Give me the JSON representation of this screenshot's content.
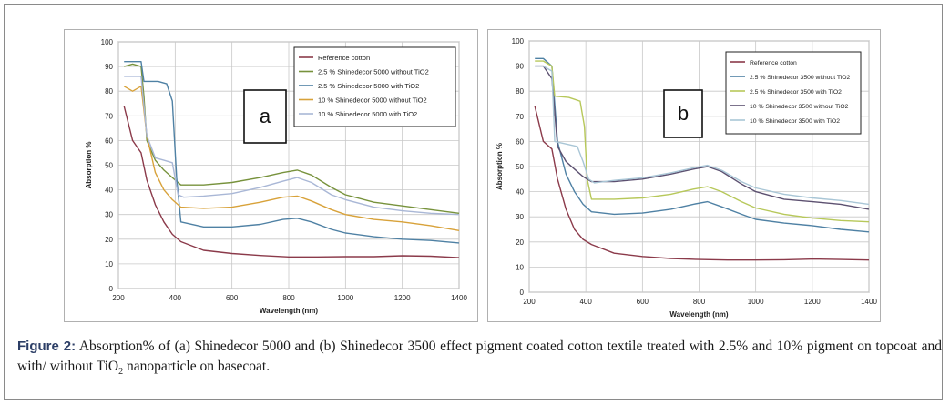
{
  "caption": {
    "label": "Figure 2:",
    "text_before_sub": " Absorption% of (a) Shinedecor 5000 and (b) Shinedecor 3500 effect pigment coated cotton textile treated with 2.5% and 10% pigment on topcoat and with/ without TiO",
    "sub": "2",
    "text_after_sub": " nanoparticle on basecoat."
  },
  "chart_data": [
    {
      "type": "line",
      "panel_label": "a",
      "xlabel": "Wavelength (nm)",
      "ylabel": "Absorption %",
      "xlim": [
        200,
        1400
      ],
      "ylim": [
        0,
        100
      ],
      "xticks": [
        200,
        400,
        600,
        800,
        1000,
        1200,
        1400
      ],
      "yticks": [
        0,
        10,
        20,
        30,
        40,
        50,
        60,
        70,
        80,
        90,
        100
      ],
      "grid": true,
      "legend_position": "top-right",
      "series": [
        {
          "name": "Reference cotton",
          "color": "#8b3a4a",
          "points": [
            [
              220,
              74
            ],
            [
              250,
              60
            ],
            [
              280,
              55
            ],
            [
              300,
              44
            ],
            [
              330,
              34
            ],
            [
              360,
              27
            ],
            [
              390,
              22
            ],
            [
              420,
              19
            ],
            [
              500,
              15.5
            ],
            [
              600,
              14.2
            ],
            [
              700,
              13.4
            ],
            [
              800,
              12.8
            ],
            [
              900,
              12.8
            ],
            [
              1000,
              12.9
            ],
            [
              1100,
              12.9
            ],
            [
              1200,
              13.3
            ],
            [
              1300,
              13.1
            ],
            [
              1400,
              12.5
            ]
          ]
        },
        {
          "name": "2.5 % Shinedecor 5000 without TiO2",
          "color": "#77923c",
          "points": [
            [
              220,
              90
            ],
            [
              250,
              91
            ],
            [
              280,
              90
            ],
            [
              290,
              78
            ],
            [
              300,
              60
            ],
            [
              330,
              52
            ],
            [
              360,
              48
            ],
            [
              390,
              45
            ],
            [
              420,
              42
            ],
            [
              500,
              42
            ],
            [
              600,
              43
            ],
            [
              700,
              45
            ],
            [
              780,
              47
            ],
            [
              830,
              48
            ],
            [
              880,
              46
            ],
            [
              950,
              41
            ],
            [
              1000,
              38
            ],
            [
              1100,
              35
            ],
            [
              1200,
              33.5
            ],
            [
              1300,
              32
            ],
            [
              1400,
              30.5
            ]
          ]
        },
        {
          "name": "2.5 % Shinedecor 5000 with TiO2",
          "color": "#4f81a4",
          "points": [
            [
              220,
              92
            ],
            [
              250,
              92
            ],
            [
              280,
              92
            ],
            [
              290,
              84
            ],
            [
              340,
              84
            ],
            [
              370,
              83
            ],
            [
              390,
              76
            ],
            [
              405,
              45
            ],
            [
              420,
              27
            ],
            [
              500,
              25
            ],
            [
              600,
              25
            ],
            [
              700,
              26
            ],
            [
              780,
              28
            ],
            [
              830,
              28.5
            ],
            [
              880,
              27
            ],
            [
              950,
              24
            ],
            [
              1000,
              22.5
            ],
            [
              1100,
              21
            ],
            [
              1200,
              20
            ],
            [
              1300,
              19.5
            ],
            [
              1400,
              18.5
            ]
          ]
        },
        {
          "name": "10 % Shinedecor 5000 without TiO2",
          "color": "#d8a23a",
          "points": [
            [
              220,
              82
            ],
            [
              250,
              80
            ],
            [
              280,
              82
            ],
            [
              300,
              62
            ],
            [
              330,
              47
            ],
            [
              360,
              40
            ],
            [
              390,
              36
            ],
            [
              420,
              33
            ],
            [
              500,
              32.5
            ],
            [
              600,
              33
            ],
            [
              700,
              35
            ],
            [
              780,
              37
            ],
            [
              830,
              37.5
            ],
            [
              880,
              35.5
            ],
            [
              950,
              32
            ],
            [
              1000,
              30
            ],
            [
              1100,
              28
            ],
            [
              1200,
              27
            ],
            [
              1300,
              25.5
            ],
            [
              1400,
              23.5
            ]
          ]
        },
        {
          "name": "10 % Shinedecor 5000 with TiO2",
          "color": "#a9b7d6",
          "points": [
            [
              220,
              86
            ],
            [
              250,
              86
            ],
            [
              280,
              86
            ],
            [
              300,
              62
            ],
            [
              330,
              53
            ],
            [
              360,
              52
            ],
            [
              390,
              51
            ],
            [
              410,
              38
            ],
            [
              430,
              37
            ],
            [
              500,
              37.5
            ],
            [
              600,
              38.5
            ],
            [
              700,
              41
            ],
            [
              780,
              43.5
            ],
            [
              830,
              45
            ],
            [
              880,
              43
            ],
            [
              950,
              38
            ],
            [
              1000,
              36
            ],
            [
              1100,
              33
            ],
            [
              1200,
              31.5
            ],
            [
              1300,
              30.5
            ],
            [
              1400,
              30
            ]
          ]
        }
      ]
    },
    {
      "type": "line",
      "panel_label": "b",
      "xlabel": "Wavelength (nm)",
      "ylabel": "Absorption %",
      "xlim": [
        200,
        1400
      ],
      "ylim": [
        0,
        100
      ],
      "xticks": [
        200,
        400,
        600,
        800,
        1000,
        1200,
        1400
      ],
      "yticks": [
        0,
        10,
        20,
        30,
        40,
        50,
        60,
        70,
        80,
        90,
        100
      ],
      "grid": true,
      "legend_position": "top-right",
      "series": [
        {
          "name": "Reference cotton",
          "color": "#8b3a4a",
          "points": [
            [
              220,
              74
            ],
            [
              250,
              60
            ],
            [
              280,
              57
            ],
            [
              300,
              45
            ],
            [
              330,
              33
            ],
            [
              360,
              25
            ],
            [
              390,
              21
            ],
            [
              420,
              19
            ],
            [
              500,
              15.5
            ],
            [
              600,
              14.2
            ],
            [
              700,
              13.4
            ],
            [
              800,
              13
            ],
            [
              900,
              12.8
            ],
            [
              1000,
              12.8
            ],
            [
              1100,
              12.9
            ],
            [
              1200,
              13.2
            ],
            [
              1300,
              13
            ],
            [
              1400,
              12.8
            ]
          ]
        },
        {
          "name": "2.5 % Shinedecor 3500 without TiO2",
          "color": "#4f81a4",
          "points": [
            [
              220,
              93
            ],
            [
              250,
              93
            ],
            [
              280,
              90
            ],
            [
              300,
              60
            ],
            [
              330,
              47
            ],
            [
              360,
              40
            ],
            [
              390,
              35
            ],
            [
              420,
              32
            ],
            [
              500,
              31
            ],
            [
              600,
              31.5
            ],
            [
              700,
              33
            ],
            [
              780,
              35
            ],
            [
              830,
              36
            ],
            [
              880,
              34
            ],
            [
              950,
              31
            ],
            [
              1000,
              29
            ],
            [
              1100,
              27.5
            ],
            [
              1200,
              26.5
            ],
            [
              1300,
              25
            ],
            [
              1400,
              24
            ]
          ]
        },
        {
          "name": "2.5 % Shinedecor 3500 with TiO2",
          "color": "#b7c85a",
          "points": [
            [
              220,
              92
            ],
            [
              250,
              92
            ],
            [
              280,
              90
            ],
            [
              290,
              78
            ],
            [
              340,
              77.5
            ],
            [
              380,
              76
            ],
            [
              395,
              66
            ],
            [
              405,
              45
            ],
            [
              420,
              37
            ],
            [
              500,
              37
            ],
            [
              600,
              37.5
            ],
            [
              700,
              39
            ],
            [
              780,
              41
            ],
            [
              830,
              42
            ],
            [
              880,
              40
            ],
            [
              950,
              36
            ],
            [
              1000,
              33.5
            ],
            [
              1100,
              31
            ],
            [
              1200,
              29.5
            ],
            [
              1300,
              28.5
            ],
            [
              1400,
              28
            ]
          ]
        },
        {
          "name": "10 % Shinedecor 3500 without TiO2",
          "color": "#5c5070",
          "points": [
            [
              220,
              90
            ],
            [
              250,
              90
            ],
            [
              280,
              85
            ],
            [
              300,
              58
            ],
            [
              330,
              52
            ],
            [
              360,
              49
            ],
            [
              390,
              46
            ],
            [
              420,
              44
            ],
            [
              500,
              44
            ],
            [
              600,
              45
            ],
            [
              700,
              47
            ],
            [
              780,
              49
            ],
            [
              830,
              50
            ],
            [
              880,
              48
            ],
            [
              950,
              43
            ],
            [
              1000,
              40
            ],
            [
              1100,
              37
            ],
            [
              1200,
              36
            ],
            [
              1300,
              35
            ],
            [
              1400,
              33
            ]
          ]
        },
        {
          "name": "10 % Shinedecor 3500 with TiO2",
          "color": "#a9c6d6",
          "points": [
            [
              220,
              90
            ],
            [
              250,
              90
            ],
            [
              280,
              88
            ],
            [
              290,
              60
            ],
            [
              330,
              59
            ],
            [
              370,
              58
            ],
            [
              390,
              52
            ],
            [
              410,
              45
            ],
            [
              430,
              43.5
            ],
            [
              500,
              44.5
            ],
            [
              600,
              45.5
            ],
            [
              700,
              47.5
            ],
            [
              780,
              49.5
            ],
            [
              830,
              50.5
            ],
            [
              880,
              48.5
            ],
            [
              950,
              44
            ],
            [
              1000,
              41.5
            ],
            [
              1100,
              39
            ],
            [
              1200,
              37.5
            ],
            [
              1300,
              36.5
            ],
            [
              1400,
              35
            ]
          ]
        }
      ]
    }
  ]
}
